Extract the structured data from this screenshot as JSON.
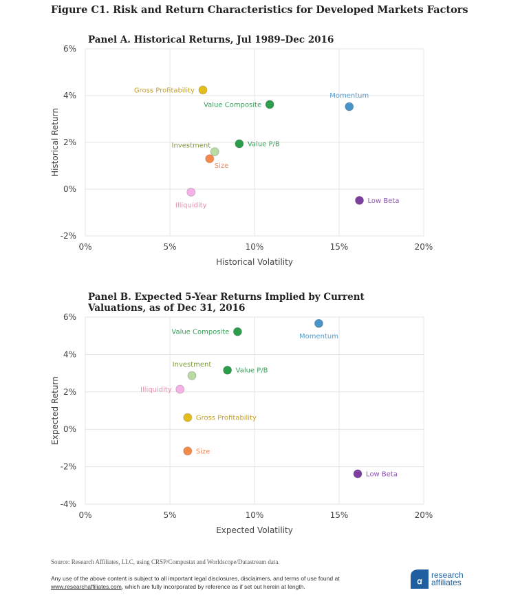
{
  "figure_title": "Figure C1. Risk and Return Characteristics for Developed Markets Factors",
  "chart_data": [
    {
      "type": "scatter",
      "title": "Panel A. Historical Returns, Jul 1989–Dec 2016",
      "xlabel": "Historical Volatility",
      "ylabel": "Historical Return",
      "xlim": [
        0,
        20
      ],
      "ylim": [
        -2,
        6
      ],
      "xticks": [
        "0%",
        "5%",
        "10%",
        "15%",
        "20%"
      ],
      "yticks": [
        "6%",
        "4%",
        "2%",
        "0%",
        "-2%"
      ],
      "grid": true,
      "points": [
        {
          "label": "Gross Profitability",
          "x": 6.95,
          "y": 4.24,
          "color": "#e3bd1a",
          "label_color": "#c9a11c",
          "label_pos": "left"
        },
        {
          "label": "Value Composite",
          "x": 10.9,
          "y": 3.62,
          "color": "#2c9e4b",
          "label_color": "#3aa05a",
          "label_pos": "left"
        },
        {
          "label": "Momentum",
          "x": 15.6,
          "y": 3.53,
          "color": "#4a93c6",
          "label_color": "#5a9ccb",
          "label_pos": "above"
        },
        {
          "label": "Value P/B",
          "x": 9.1,
          "y": 1.94,
          "color": "#2c9e4b",
          "label_color": "#3aa05a",
          "label_pos": "right"
        },
        {
          "label": "Investment",
          "x": 7.65,
          "y": 1.6,
          "color": "#b8dca4",
          "label_color": "#7f9a3c",
          "label_pos": "above-left"
        },
        {
          "label": "Size",
          "x": 7.35,
          "y": 1.3,
          "color": "#f6894a",
          "label_color": "#f08a5a",
          "label_pos": "below-right"
        },
        {
          "label": "Illiquidity",
          "x": 6.25,
          "y": -0.13,
          "color": "#f5b2e6",
          "label_color": "#e590a8",
          "label_pos": "below"
        },
        {
          "label": "Low Beta",
          "x": 16.2,
          "y": -0.48,
          "color": "#7d3f9f",
          "label_color": "#8e52b0",
          "label_pos": "right"
        }
      ]
    },
    {
      "type": "scatter",
      "title": "Panel B. Expected 5-Year Returns Implied by Current Valuations, as of Dec 31, 2016",
      "xlabel": "Expected Volatility",
      "ylabel": "Expected Return",
      "xlim": [
        0,
        20
      ],
      "ylim": [
        -4,
        6
      ],
      "xticks": [
        "0%",
        "5%",
        "10%",
        "15%",
        "20%"
      ],
      "yticks": [
        "6%",
        "4%",
        "2%",
        "0%",
        "-2%",
        "-4%"
      ],
      "grid": true,
      "points": [
        {
          "label": "Value Composite",
          "x": 9.0,
          "y": 5.22,
          "color": "#2c9e4b",
          "label_color": "#3aa05a",
          "label_pos": "left"
        },
        {
          "label": "Momentum",
          "x": 13.8,
          "y": 5.66,
          "color": "#4a93c6",
          "label_color": "#5a9ccb",
          "label_pos": "below"
        },
        {
          "label": "Value P/B",
          "x": 8.4,
          "y": 3.16,
          "color": "#2c9e4b",
          "label_color": "#3aa05a",
          "label_pos": "right"
        },
        {
          "label": "Investment",
          "x": 6.3,
          "y": 2.87,
          "color": "#b8dca4",
          "label_color": "#7f9a3c",
          "label_pos": "above"
        },
        {
          "label": "Illiquidity",
          "x": 5.6,
          "y": 2.14,
          "color": "#f5b2e6",
          "label_color": "#e590a8",
          "label_pos": "left"
        },
        {
          "label": "Gross Profitability",
          "x": 6.05,
          "y": 0.63,
          "color": "#e3bd1a",
          "label_color": "#c9a11c",
          "label_pos": "right"
        },
        {
          "label": "Size",
          "x": 6.05,
          "y": -1.16,
          "color": "#f6894a",
          "label_color": "#f08a5a",
          "label_pos": "right"
        },
        {
          "label": "Low Beta",
          "x": 16.1,
          "y": -2.38,
          "color": "#7d3f9f",
          "label_color": "#8e52b0",
          "label_pos": "right"
        }
      ]
    }
  ],
  "footer": {
    "source": "Source: Research Affiliates, LLC, using CRSP/Compustat and Worldscope/Datastream data.",
    "legal_line1": "Any use of the above content is subject to all important legal disclosures, disclaimers, and terms of use found at",
    "legal_link": "www.researchaffiliates.com",
    "legal_line2": ", which are fully incorporated by reference as if set out herein at length.",
    "logo_line1": "research",
    "logo_line2": "affiliates",
    "logo_color": "#1f5fa0"
  }
}
